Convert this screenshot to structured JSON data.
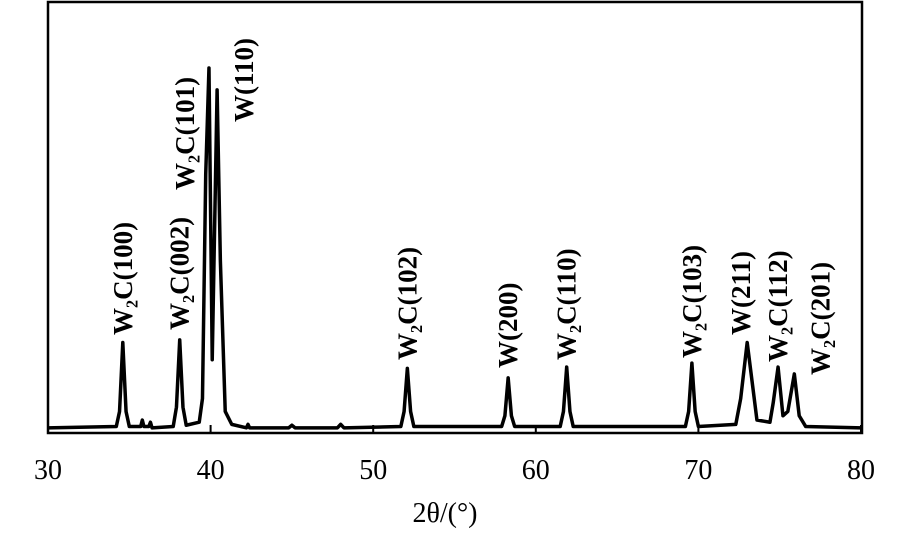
{
  "chart_data": {
    "type": "line",
    "x_label": "2θ/(°)",
    "xlim": [
      30,
      80
    ],
    "xticks": [
      30,
      40,
      50,
      60,
      70,
      80
    ],
    "ylim": [
      0,
      100
    ],
    "color": "#000000",
    "x": [
      30,
      34.2,
      34.4,
      34.6,
      34.8,
      35.0,
      35.7,
      35.8,
      35.9,
      36.2,
      36.3,
      36.4,
      37.7,
      37.9,
      38.1,
      38.3,
      38.5,
      39.3,
      39.5,
      39.7,
      39.9,
      40.1,
      40.4,
      40.6,
      40.9,
      41.3,
      42.2,
      42.3,
      42.4,
      44.8,
      45.0,
      45.2,
      47.8,
      48.0,
      48.2,
      51.7,
      51.9,
      52.1,
      52.3,
      52.5,
      57.9,
      58.1,
      58.3,
      58.5,
      58.7,
      61.5,
      61.7,
      61.9,
      62.1,
      62.3,
      69.2,
      69.4,
      69.6,
      69.8,
      70.0,
      72.3,
      72.6,
      73.0,
      73.3,
      73.6,
      74.4,
      74.6,
      74.9,
      75.2,
      75.5,
      75.9,
      76.2,
      76.6,
      80
    ],
    "values": [
      1.2,
      1.5,
      5,
      21,
      5,
      1.5,
      1.5,
      3,
      1.5,
      1.5,
      2.5,
      1.2,
      1.5,
      6,
      21.6,
      6,
      1.8,
      2.5,
      8,
      60,
      84.7,
      17,
      79.6,
      40,
      5,
      2,
      1.2,
      2,
      1.2,
      1.2,
      1.8,
      1.2,
      1.2,
      2,
      1.2,
      1.5,
      5,
      15,
      5,
      1.5,
      1.5,
      4,
      12.8,
      4,
      1.5,
      1.5,
      5,
      15.3,
      5,
      1.5,
      1.5,
      5,
      16.2,
      5,
      1.5,
      2,
      8,
      21,
      12,
      3,
      2.5,
      7,
      15.3,
      4,
      5,
      13.7,
      4,
      1.5,
      1.2
    ],
    "annotations": [
      {
        "text": "W₂C(100)",
        "x": 34.6
      },
      {
        "text": "W₂C(002)",
        "x": 38.1
      },
      {
        "text": "W₂C(101)",
        "x": 39.9
      },
      {
        "text": "W(110)",
        "x": 40.4
      },
      {
        "text": "W₂C(102)",
        "x": 52.1
      },
      {
        "text": "W(200)",
        "x": 58.3
      },
      {
        "text": "W₂C(110)",
        "x": 61.9
      },
      {
        "text": "W₂C(103)",
        "x": 69.6
      },
      {
        "text": "W(211)",
        "x": 73.0
      },
      {
        "text": "W₂C(112)",
        "x": 74.9
      },
      {
        "text": "W₂C(201)",
        "x": 75.9
      }
    ]
  }
}
